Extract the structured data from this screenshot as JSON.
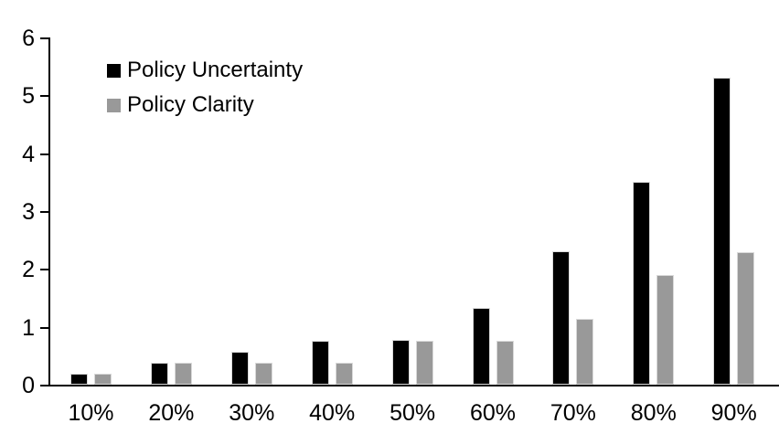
{
  "chart_data": {
    "type": "bar",
    "categories": [
      "10%",
      "20%",
      "30%",
      "40%",
      "50%",
      "60%",
      "70%",
      "80%",
      "90%"
    ],
    "series": [
      {
        "name": "Policy Uncertainty",
        "color": "#000000",
        "values": [
          0.19,
          0.38,
          0.57,
          0.76,
          0.78,
          1.33,
          2.31,
          3.5,
          5.3
        ]
      },
      {
        "name": "Policy Clarity",
        "color": "#999999",
        "values": [
          0.19,
          0.38,
          0.38,
          0.38,
          0.76,
          0.76,
          1.13,
          1.89,
          2.29
        ]
      }
    ],
    "xlabel": "",
    "ylabel": "",
    "ylim": [
      0,
      6
    ],
    "y_ticks": [
      "0",
      "1",
      "2",
      "3",
      "4",
      "5",
      "6"
    ],
    "grid": false,
    "legend_position": "inside-top-left",
    "axis_color": "#000000",
    "bar_border_color": "#d9d9d9",
    "background_color": "#ffffff"
  }
}
